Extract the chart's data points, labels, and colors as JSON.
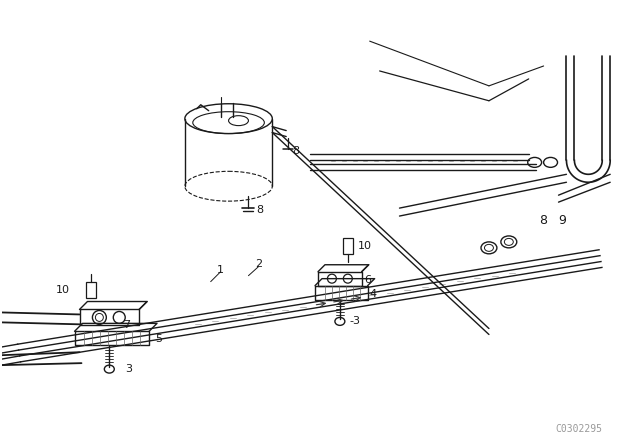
{
  "bg_color": "#ffffff",
  "line_color": "#1a1a1a",
  "fig_width": 6.4,
  "fig_height": 4.48,
  "dpi": 100,
  "watermark": "C0302295",
  "watermark_color": "#999999",
  "watermark_fontsize": 7
}
